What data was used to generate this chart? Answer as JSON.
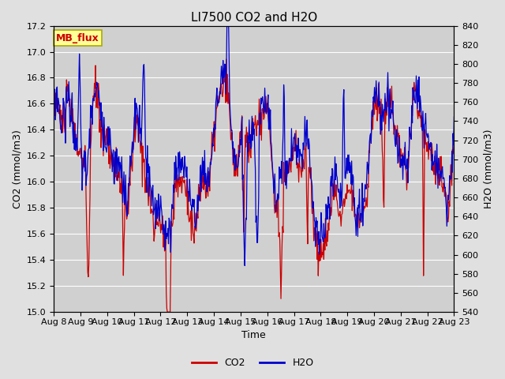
{
  "title": "LI7500 CO2 and H2O",
  "xlabel": "Time",
  "ylabel_left": "CO2 (mmol/m3)",
  "ylabel_right": "H2O (mmol/m3)",
  "co2_ylim": [
    15.0,
    17.2
  ],
  "h2o_ylim": [
    540,
    840
  ],
  "co2_yticks": [
    15.0,
    15.2,
    15.4,
    15.6,
    15.8,
    16.0,
    16.2,
    16.4,
    16.6,
    16.8,
    17.0,
    17.2
  ],
  "h2o_yticks": [
    540,
    560,
    580,
    600,
    620,
    640,
    660,
    680,
    700,
    720,
    740,
    760,
    780,
    800,
    820,
    840
  ],
  "x_tick_labels": [
    "Aug 8",
    "Aug 9",
    "Aug 10",
    "Aug 11",
    "Aug 12",
    "Aug 13",
    "Aug 14",
    "Aug 15",
    "Aug 16",
    "Aug 17",
    "Aug 18",
    "Aug 19",
    "Aug 20",
    "Aug 21",
    "Aug 22",
    "Aug 23"
  ],
  "co2_color": "#cc0000",
  "h2o_color": "#0000cc",
  "bg_color": "#e0e0e0",
  "plot_bg_color": "#d0d0d0",
  "legend_box_color": "#ffff99",
  "legend_box_edge": "#aaaa00",
  "mb_flux_color": "#cc0000",
  "title_fontsize": 11,
  "axis_label_fontsize": 9,
  "tick_fontsize": 8,
  "legend_fontsize": 9,
  "line_width": 0.9
}
